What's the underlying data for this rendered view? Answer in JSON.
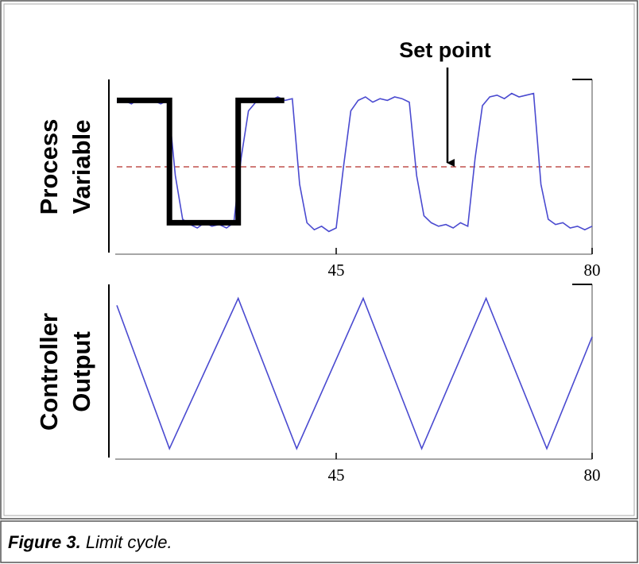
{
  "chart_data": [
    {
      "type": "line",
      "y_label": [
        "Process",
        "Variable"
      ],
      "annotation": "Set point",
      "set_point": 50,
      "set_point_color": "#c0504d",
      "xlim": [
        15,
        80
      ],
      "xticks": [
        45,
        80
      ],
      "ylim": [
        0,
        100
      ],
      "grid": false,
      "series": [
        {
          "color": "#4a4ad0",
          "x": [
            15,
            16,
            17,
            18,
            19,
            20,
            21,
            22,
            23,
            24,
            25,
            26,
            27,
            28,
            29,
            30,
            31,
            32,
            33,
            34,
            35,
            36,
            37,
            38,
            39,
            40,
            41,
            42,
            43,
            44,
            45,
            46,
            47,
            48,
            49,
            50,
            51,
            52,
            53,
            54,
            55,
            56,
            57,
            58,
            59,
            60,
            61,
            62,
            63,
            64,
            65,
            66,
            67,
            68,
            69,
            70,
            71,
            72,
            73,
            74,
            75,
            76,
            77,
            78,
            79,
            80
          ],
          "values": [
            87,
            88,
            86,
            89,
            87,
            88,
            86,
            88,
            45,
            20,
            17,
            15,
            18,
            16,
            17,
            15,
            18,
            55,
            82,
            87,
            89,
            88,
            90,
            88,
            89,
            40,
            18,
            14,
            16,
            13,
            15,
            50,
            82,
            88,
            90,
            87,
            89,
            88,
            90,
            89,
            87,
            45,
            22,
            18,
            16,
            17,
            15,
            18,
            16,
            55,
            85,
            90,
            91,
            89,
            92,
            90,
            91,
            92,
            40,
            20,
            17,
            18,
            15,
            16,
            14,
            16
          ]
        },
        {
          "color": "#000000",
          "x": [
            15,
            22.2,
            22.2,
            31.6,
            31.6,
            37.9
          ],
          "values": [
            88,
            88,
            18,
            18,
            88,
            88
          ]
        }
      ]
    },
    {
      "type": "line",
      "y_label": [
        "Controller",
        "Output"
      ],
      "xlim": [
        15,
        80
      ],
      "xticks": [
        45,
        80
      ],
      "ylim": [
        0,
        100
      ],
      "grid": false,
      "series": [
        {
          "color": "#4a4ad0",
          "x": [
            15,
            22.2,
            31.6,
            39.6,
            48.7,
            56.7,
            65.5,
            73.8,
            80
          ],
          "values": [
            88,
            6,
            92,
            6,
            92,
            6,
            92,
            6,
            70
          ]
        }
      ]
    }
  ],
  "caption": {
    "label": "Figure 3.",
    "text": "Limit cycle."
  }
}
